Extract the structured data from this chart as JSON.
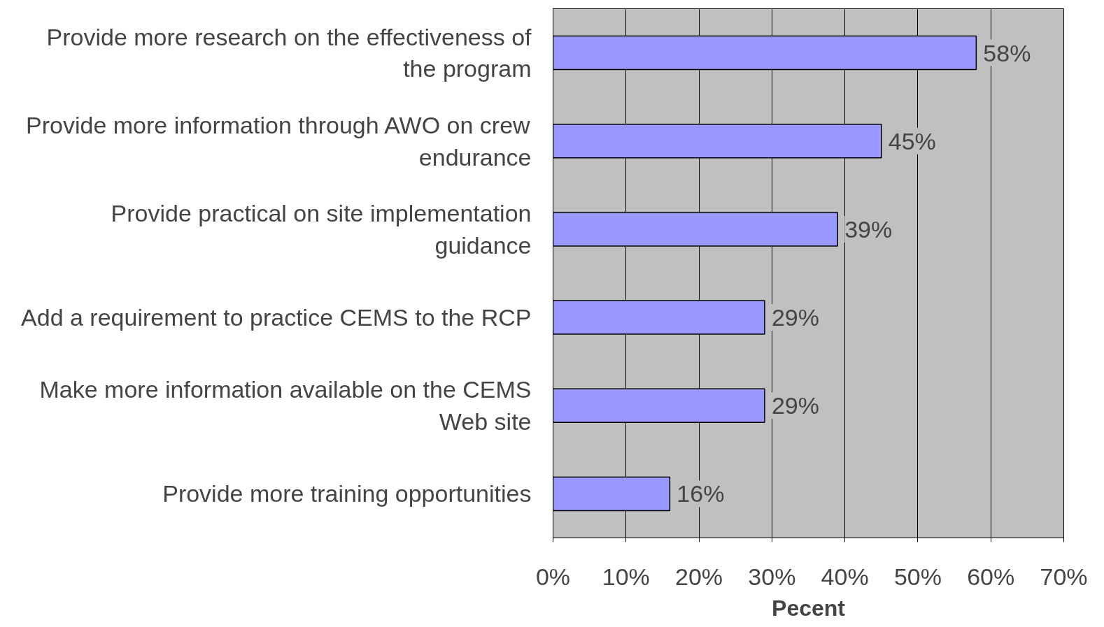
{
  "chart_data": {
    "type": "bar",
    "orientation": "horizontal",
    "xlabel": "Pecent",
    "categories": [
      "Provide more research on the effectiveness of the program",
      "Provide more information through AWO on crew endurance",
      "Provide practical on site implementation guidance",
      "Add a requirement to practice CEMS to the RCP",
      "Make more information available on the CEMS Web site",
      "Provide more training opportunities"
    ],
    "values": [
      58,
      45,
      39,
      29,
      29,
      16
    ],
    "color": "#9999ff",
    "value_labels": [
      "58%",
      "45%",
      "39%",
      "29%",
      "29%",
      "16%"
    ],
    "xlim": [
      0,
      70
    ],
    "xticks": [
      {
        "value": 0,
        "label": "0%"
      },
      {
        "value": 10,
        "label": "10%"
      },
      {
        "value": 20,
        "label": "20%"
      },
      {
        "value": 30,
        "label": "30%"
      },
      {
        "value": 40,
        "label": "40%"
      },
      {
        "value": 50,
        "label": "50%"
      },
      {
        "value": 60,
        "label": "60%"
      },
      {
        "value": 70,
        "label": "70%"
      }
    ],
    "grid": "x"
  }
}
